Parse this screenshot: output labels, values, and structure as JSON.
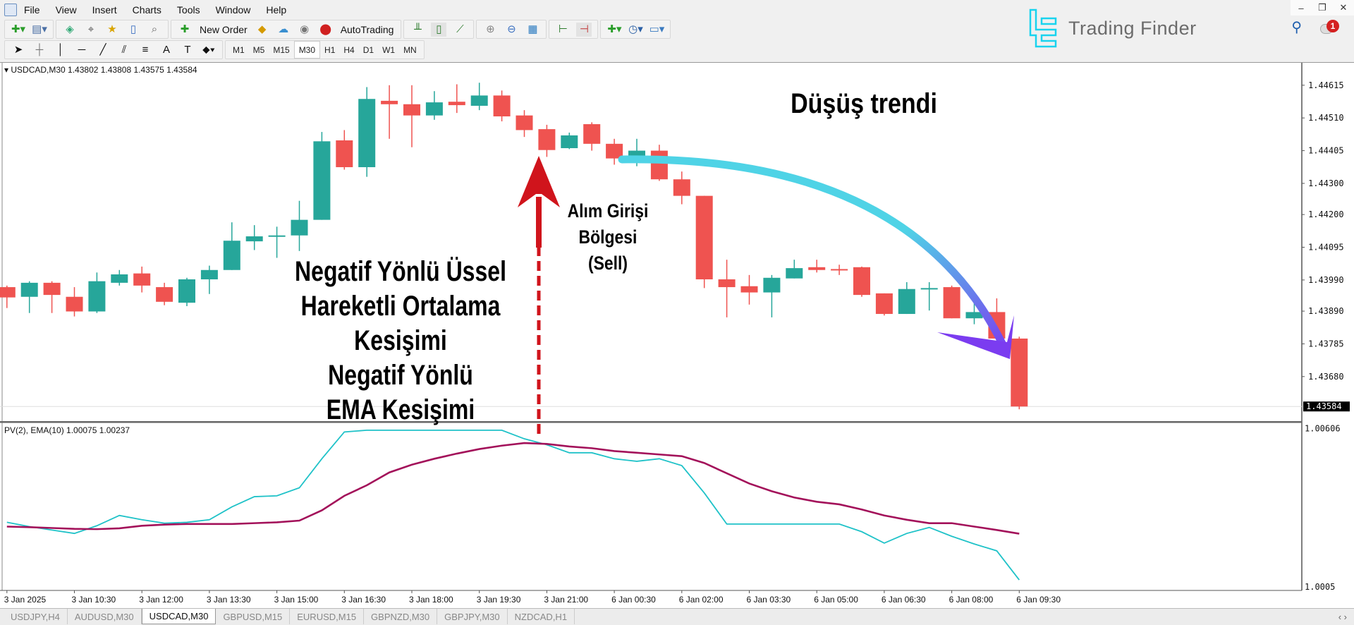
{
  "menu": [
    "File",
    "View",
    "Insert",
    "Charts",
    "Tools",
    "Window",
    "Help"
  ],
  "toolbar": {
    "new_order": "New Order",
    "autotrading": "AutoTrading",
    "timeframes": [
      "M1",
      "M5",
      "M15",
      "M30",
      "H1",
      "H4",
      "D1",
      "W1",
      "MN"
    ],
    "active_timeframe": "M30"
  },
  "logo": {
    "text": "Trading Finder"
  },
  "notifications": {
    "count": "1"
  },
  "chart": {
    "header": "USDCAD,M30  1.43802 1.43808 1.43575 1.43584",
    "indicator_header": "PV(2),  EMA(10) 1.00075 1.00237",
    "current_price": "1.43584"
  },
  "annotations": {
    "main_text": [
      "Negatif Yönlü Üssel",
      "Hareketli Ortalama",
      "Kesişimi",
      "Negatif Yönlü",
      "EMA Kesişimi"
    ],
    "entry_text": [
      "Alım Girişi",
      "Bölgesi",
      "(Sell)"
    ],
    "trend_text": "Düşüş trendi"
  },
  "tabs": [
    "USDJPY,H4",
    "AUDUSD,M30",
    "USDCAD,M30",
    "GBPUSD,M15",
    "EURUSD,M15",
    "GBPNZD,M30",
    "GBPJPY,M30",
    "NZDCAD,H1"
  ],
  "active_tab": "USDCAD,M30",
  "colors": {
    "bull": "#26a69a",
    "bear": "#ef5350",
    "pv": "#1fc2c8",
    "ema": "#a3115a",
    "arrow_red": "#d0141c",
    "trend_start": "#4fd3e6",
    "trend_end": "#7b3cf0"
  },
  "chart_data": [
    {
      "type": "candlestick",
      "symbol": "USDCAD,M30",
      "ylim": [
        1.43537,
        1.44687
      ],
      "y_ticks": [
        "1.44615",
        "1.44510",
        "1.44405",
        "1.44300",
        "1.44200",
        "1.44095",
        "1.43990",
        "1.43890",
        "1.43785",
        "1.43680"
      ],
      "x_ticks": [
        "3 Jan 2025",
        "3 Jan 10:30",
        "3 Jan 12:00",
        "3 Jan 13:30",
        "3 Jan 15:00",
        "3 Jan 16:30",
        "3 Jan 18:00",
        "3 Jan 19:30",
        "3 Jan 21:00",
        "6 Jan 00:30",
        "6 Jan 02:00",
        "6 Jan 03:30",
        "6 Jan 05:00",
        "6 Jan 06:30",
        "6 Jan 08:00",
        "6 Jan 09:30"
      ],
      "ohlc": [
        [
          1.43967,
          1.43972,
          1.439,
          1.43934
        ],
        [
          1.43936,
          1.43986,
          1.43884,
          1.43981
        ],
        [
          1.43981,
          1.43986,
          1.43884,
          1.43942
        ],
        [
          1.43936,
          1.43967,
          1.43873,
          1.43889
        ],
        [
          1.43889,
          1.44014,
          1.43884,
          1.43986
        ],
        [
          1.43981,
          1.44022,
          1.43972,
          1.44008
        ],
        [
          1.44011,
          1.44033,
          1.4395,
          1.43972
        ],
        [
          1.43967,
          1.43981,
          1.43909,
          1.4392
        ],
        [
          1.43917,
          1.43997,
          1.43906,
          1.43992
        ],
        [
          1.43992,
          1.44036,
          1.43945,
          1.44022
        ],
        [
          1.44022,
          1.44175,
          1.44022,
          1.44116
        ],
        [
          1.44114,
          1.44166,
          1.44086,
          1.4413
        ],
        [
          1.4413,
          1.44161,
          1.44061,
          1.44133
        ],
        [
          1.44133,
          1.44244,
          1.44083,
          1.44183
        ],
        [
          1.44183,
          1.44465,
          1.44183,
          1.44435
        ],
        [
          1.44438,
          1.44471,
          1.44344,
          1.44352
        ],
        [
          1.44352,
          1.44609,
          1.44321,
          1.44571
        ],
        [
          1.44565,
          1.44615,
          1.44443,
          1.44554
        ],
        [
          1.44554,
          1.44615,
          1.44416,
          1.44518
        ],
        [
          1.44518,
          1.44596,
          1.44504,
          1.4456
        ],
        [
          1.44562,
          1.44618,
          1.44526,
          1.44551
        ],
        [
          1.44549,
          1.44623,
          1.44535,
          1.44582
        ],
        [
          1.44582,
          1.44598,
          1.44499,
          1.44515
        ],
        [
          1.44518,
          1.44535,
          1.44449,
          1.44471
        ],
        [
          1.44474,
          1.44488,
          1.44385,
          1.44407
        ],
        [
          1.44413,
          1.44463,
          1.4441,
          1.44454
        ],
        [
          1.4449,
          1.44496,
          1.44405,
          1.44427
        ],
        [
          1.44427,
          1.44443,
          1.4436,
          1.4438
        ],
        [
          1.44385,
          1.44443,
          1.44355,
          1.44405
        ],
        [
          1.44405,
          1.44424,
          1.44308,
          1.44313
        ],
        [
          1.44313,
          1.44338,
          1.44233,
          1.4426
        ],
        [
          1.4426,
          1.4426,
          1.43964,
          1.43992
        ],
        [
          1.43992,
          1.44055,
          1.4387,
          1.43967
        ],
        [
          1.4397,
          1.44006,
          1.43911,
          1.4395
        ],
        [
          1.4395,
          1.44006,
          1.4387,
          1.43997
        ],
        [
          1.43995,
          1.44055,
          1.43995,
          1.44028
        ],
        [
          1.44031,
          1.44055,
          1.44014,
          1.44022
        ],
        [
          1.44025,
          1.44039,
          1.44006,
          1.44022
        ],
        [
          1.44031,
          1.44033,
          1.43936,
          1.43942
        ],
        [
          1.43947,
          1.43947,
          1.43876,
          1.43881
        ],
        [
          1.43881,
          1.43983,
          1.43881,
          1.43961
        ],
        [
          1.43961,
          1.43983,
          1.43892,
          1.43964
        ],
        [
          1.43967,
          1.43972,
          1.43867,
          1.43867
        ],
        [
          1.43867,
          1.43936,
          1.43848,
          1.43887
        ],
        [
          1.43887,
          1.43931,
          1.43801,
          1.43802
        ],
        [
          1.43802,
          1.43808,
          1.43575,
          1.43584
        ]
      ]
    },
    {
      "type": "line",
      "ylim": [
        1.00038,
        1.00627
      ],
      "y_ticks": [
        "1.00606",
        "1.0005"
      ],
      "series": [
        {
          "name": "PV(2)",
          "values": [
            1.00277,
            1.00262,
            1.0025,
            1.00238,
            1.00265,
            1.00301,
            1.00286,
            1.00274,
            1.00277,
            1.00286,
            1.00331,
            1.00367,
            1.0037,
            1.00398,
            1.005,
            1.00594,
            1.006,
            1.006,
            1.006,
            1.006,
            1.006,
            1.006,
            1.006,
            1.0057,
            1.00549,
            1.00521,
            1.00521,
            1.005,
            1.00491,
            1.005,
            1.00476,
            1.0038,
            1.00271,
            1.00271,
            1.00271,
            1.00271,
            1.00271,
            1.00271,
            1.00244,
            1.00204,
            1.00238,
            1.00259,
            1.00228,
            1.00201,
            1.00177,
            1.00075
          ]
        },
        {
          "name": "EMA(10)",
          "values": [
            1.00262,
            1.0026,
            1.00257,
            1.00254,
            1.00253,
            1.00256,
            1.00265,
            1.00269,
            1.00271,
            1.00271,
            1.00271,
            1.00274,
            1.00277,
            1.00283,
            1.00319,
            1.0037,
            1.00407,
            1.00452,
            1.00479,
            1.005,
            1.00518,
            1.00534,
            1.00546,
            1.00555,
            1.00552,
            1.00543,
            1.00537,
            1.00527,
            1.00521,
            1.00515,
            1.00509,
            1.00485,
            1.00449,
            1.00413,
            1.00386,
            1.00364,
            1.00349,
            1.0034,
            1.00322,
            1.00301,
            1.00286,
            1.00274,
            1.00274,
            1.00262,
            1.0025,
            1.00237
          ]
        }
      ]
    }
  ]
}
